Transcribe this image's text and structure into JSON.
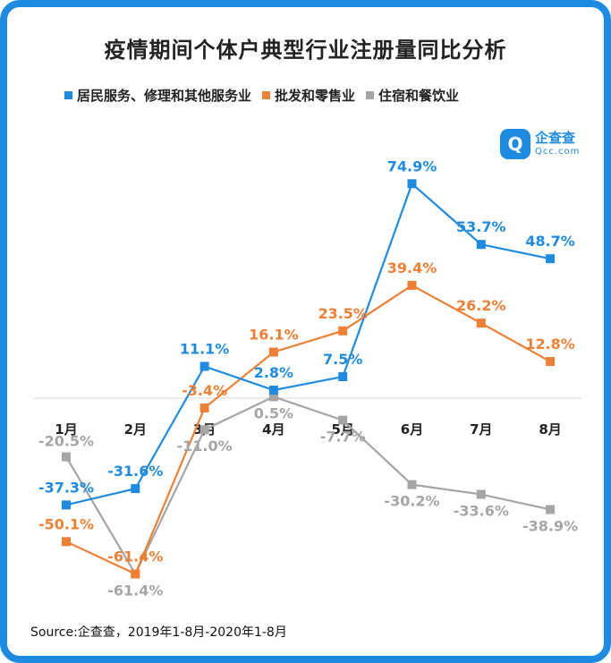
{
  "brand": {
    "name": "企查查",
    "domain": "Qcc.com",
    "icon_glyph": "Q",
    "color": "#1e8be3"
  },
  "source": "Source:企查查，2019年1-8月-2020年1-8月",
  "chart_data": {
    "type": "line",
    "title": "疫情期间个体户典型行业注册量同比分析",
    "categories": [
      "1月",
      "2月",
      "3月",
      "4月",
      "5月",
      "6月",
      "7月",
      "8月"
    ],
    "ylim": [
      -65,
      80
    ],
    "unit": "%",
    "grid": false,
    "legend_position": "top",
    "series": [
      {
        "name": "居民服务、修理和其他服务业",
        "color": "#1e8be3",
        "values": [
          -37.3,
          -31.6,
          11.1,
          2.8,
          7.5,
          74.9,
          53.7,
          48.7
        ],
        "labels": [
          "-37.3%",
          "-31.6%",
          "11.1%",
          "2.8%",
          "7.5%",
          "74.9%",
          "53.7%",
          "48.7%"
        ]
      },
      {
        "name": "批发和零售业",
        "color": "#ee7f33",
        "values": [
          -50.1,
          -61.4,
          -3.4,
          16.1,
          23.5,
          39.4,
          26.2,
          12.8
        ],
        "labels": [
          "-50.1%",
          "-61.4%",
          "-3.4%",
          "16.1%",
          "23.5%",
          "39.4%",
          "26.2%",
          "12.8%"
        ]
      },
      {
        "name": "住宿和餐饮业",
        "color": "#a5a5a5",
        "values": [
          -20.5,
          -61.4,
          -11.0,
          0.5,
          -7.7,
          -30.2,
          -33.6,
          -38.9
        ],
        "labels": [
          "-20.5%",
          "-61.4%",
          "-11.0%",
          "0.5%",
          "-7.7%",
          "-30.2%",
          "-33.6%",
          "-38.9%"
        ]
      }
    ]
  }
}
